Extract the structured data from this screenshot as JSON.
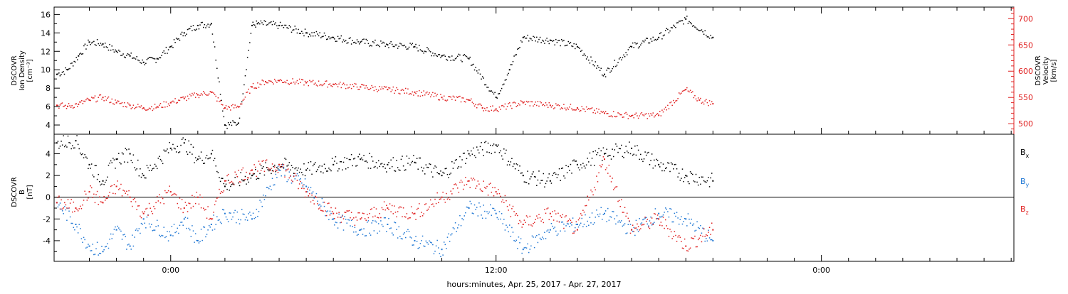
{
  "x_axis": {
    "label": "hours:minutes, Apr. 25, 2017 - Apr. 27, 2017",
    "tick_labels": [
      "0:00",
      "12:00",
      "0:00"
    ]
  },
  "chart_data": [
    {
      "type": "scatter",
      "panel": "top",
      "title": "",
      "x_unit": "hours relative to 0:00 (first labeled midnight)",
      "xlim": [
        -4.3,
        31.1
      ],
      "ylabel_left": [
        "DSCOVR",
        "Ion Density",
        "[cm⁻³]"
      ],
      "ylabel_right": [
        "DSCOVR",
        "Velocity",
        "[km/s]"
      ],
      "yleft_range": [
        3.0,
        16.8
      ],
      "yleft_ticks": [
        4,
        6,
        8,
        10,
        12,
        14,
        16
      ],
      "yright_range": [
        480,
        722
      ],
      "yright_ticks": [
        500,
        550,
        600,
        650,
        700
      ],
      "series": [
        {
          "name": "Ion Density",
          "axis": "left",
          "color": "#000000",
          "x": [
            -4.2,
            -3.8,
            -3.4,
            -3.0,
            -2.5,
            -2.0,
            -1.5,
            -1.0,
            -0.5,
            0.0,
            0.5,
            1.0,
            1.5,
            2.0,
            2.5,
            3.0,
            3.2,
            4.0,
            5.0,
            6.0,
            7.0,
            8.0,
            9.0,
            10.0,
            11.0,
            12.0,
            12.5,
            13.0,
            14.0,
            15.0,
            16.0,
            17.0,
            18.0,
            19.0,
            20.0
          ],
          "y": [
            9.5,
            10.0,
            11.5,
            13.0,
            12.8,
            12.0,
            11.5,
            10.8,
            11.2,
            12.5,
            14.0,
            14.8,
            15.0,
            4.0,
            4.2,
            14.8,
            15.0,
            14.8,
            14.0,
            13.5,
            13.0,
            12.7,
            12.5,
            11.5,
            11.2,
            7.0,
            10.0,
            13.5,
            13.2,
            12.5,
            9.5,
            12.5,
            13.5,
            15.5,
            13.5
          ]
        },
        {
          "name": "Velocity",
          "axis": "right",
          "color": "#e02020",
          "x": [
            -4.2,
            -3.8,
            -3.4,
            -3.0,
            -2.5,
            -2.0,
            -1.5,
            -1.0,
            -0.5,
            0.0,
            0.5,
            1.0,
            1.5,
            2.0,
            2.5,
            3.0,
            3.5,
            4.0,
            5.0,
            6.0,
            7.0,
            8.0,
            9.0,
            10.0,
            11.0,
            11.5,
            12.0,
            13.0,
            14.0,
            15.0,
            16.0,
            17.0,
            18.0,
            19.0,
            19.5,
            20.0
          ],
          "y": [
            535,
            533,
            537,
            545,
            550,
            540,
            535,
            530,
            532,
            540,
            548,
            555,
            560,
            530,
            532,
            570,
            580,
            582,
            578,
            575,
            570,
            565,
            560,
            550,
            545,
            530,
            528,
            540,
            535,
            530,
            520,
            515,
            516,
            565,
            545,
            538
          ]
        }
      ]
    },
    {
      "type": "scatter",
      "panel": "bottom",
      "title": "",
      "x_unit": "hours relative to 0:00 (first labeled midnight)",
      "xlim": [
        -4.3,
        31.1
      ],
      "ylabel_left": [
        "DSCOVR",
        "B",
        "[nT]"
      ],
      "y_range": [
        -5.9,
        5.8
      ],
      "y_ticks": [
        -4,
        -2,
        0,
        2,
        4
      ],
      "zero_line": true,
      "legend_placement": "right",
      "series": [
        {
          "name": "B",
          "subscript": "x",
          "color": "#000000",
          "x": [
            -4.2,
            -3.5,
            -3.0,
            -2.5,
            -2.0,
            -1.5,
            -1.0,
            0.0,
            0.5,
            1.0,
            1.5,
            2.0,
            3.0,
            4.0,
            5.0,
            6.0,
            7.0,
            8.0,
            9.0,
            10.0,
            11.0,
            12.0,
            13.0,
            14.0,
            15.0,
            16.0,
            17.0,
            18.0,
            19.0,
            20.0
          ],
          "y": [
            5.0,
            5.2,
            3.0,
            1.5,
            3.5,
            4.0,
            2.0,
            4.5,
            5.0,
            3.5,
            4.0,
            1.0,
            2.0,
            3.0,
            2.5,
            3.0,
            3.5,
            3.0,
            3.2,
            2.0,
            4.0,
            4.8,
            2.0,
            1.5,
            3.0,
            4.0,
            4.5,
            3.0,
            2.0,
            1.5
          ]
        },
        {
          "name": "B",
          "subscript": "y",
          "color": "#1f77d4",
          "x": [
            -4.2,
            -3.5,
            -3.0,
            -2.5,
            -2.0,
            -1.5,
            -1.0,
            0.0,
            0.5,
            1.0,
            1.5,
            2.0,
            3.0,
            4.0,
            5.0,
            6.0,
            7.0,
            8.0,
            9.0,
            10.0,
            11.0,
            12.0,
            13.0,
            14.0,
            15.0,
            16.0,
            17.0,
            18.0,
            19.0,
            20.0
          ],
          "y": [
            -0.5,
            -2.5,
            -4.5,
            -5.0,
            -3.0,
            -4.5,
            -2.0,
            -3.5,
            -2.0,
            -4.0,
            -2.5,
            -1.5,
            -2.0,
            2.5,
            1.0,
            -2.0,
            -3.0,
            -2.5,
            -4.0,
            -4.8,
            -1.0,
            -1.5,
            -4.8,
            -3.0,
            -2.5,
            -1.5,
            -3.0,
            -1.5,
            -2.0,
            -4.0
          ]
        },
        {
          "name": "B",
          "subscript": "z",
          "color": "#e02020",
          "x": [
            -4.2,
            -3.5,
            -3.0,
            -2.5,
            -2.0,
            -1.5,
            -1.0,
            0.0,
            0.5,
            1.0,
            1.5,
            2.0,
            3.0,
            4.0,
            5.0,
            6.0,
            7.0,
            8.0,
            9.0,
            10.0,
            11.0,
            12.0,
            13.0,
            14.0,
            15.0,
            16.0,
            17.0,
            18.0,
            19.0,
            20.0
          ],
          "y": [
            -0.5,
            -1.0,
            0.5,
            -0.5,
            1.0,
            0.0,
            -1.5,
            0.5,
            -1.0,
            0.0,
            -2.0,
            1.5,
            2.5,
            3.0,
            0.5,
            -1.5,
            -2.0,
            -1.0,
            -1.5,
            0.0,
            1.5,
            0.5,
            -2.5,
            -1.5,
            -3.0,
            3.5,
            -3.0,
            -2.0,
            -4.5,
            -3.0
          ]
        }
      ]
    }
  ]
}
